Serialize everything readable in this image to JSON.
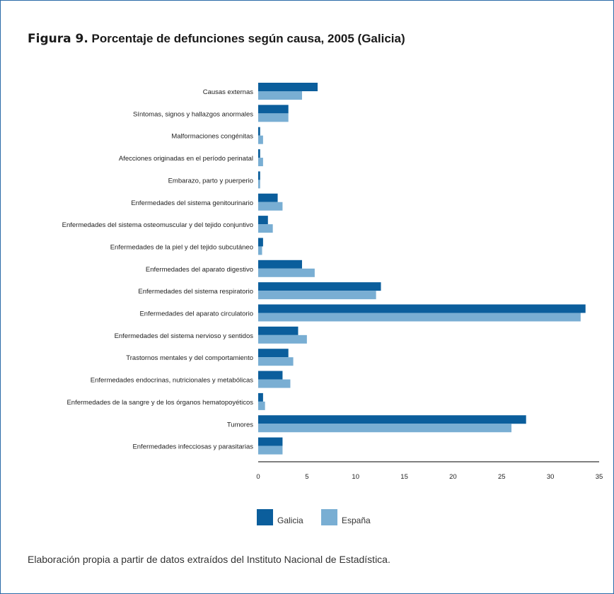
{
  "figure": {
    "label": "Figura 9.",
    "title": "Porcentaje de defunciones según causa, 2005 (Galicia)",
    "source": "Elaboración propia a partir de datos extraídos del Instituto Nacional de Estadística."
  },
  "colors": {
    "galicia": "#0b5e9c",
    "espana": "#79aed3",
    "border": "#2a6aa8",
    "axis": "#000000",
    "text": "#333333"
  },
  "chart_data": {
    "type": "bar",
    "orientation": "horizontal",
    "title": "Porcentaje de defunciones según causa, 2005 (Galicia)",
    "xlim": [
      0,
      35
    ],
    "xticks": [
      0,
      5,
      10,
      15,
      20,
      25,
      30,
      35
    ],
    "grid": false,
    "legend_position": "bottom-left",
    "categories": [
      "Causas externas",
      "Síntomas, signos y hallazgos anormales",
      "Malformaciones congénitas",
      "Afecciones originadas en el período perinatal",
      "Embarazo, parto y puerperio",
      "Enfermedades del sistema genitourinario",
      "Enfermedades del sistema osteomuscular y del tejido conjuntivo",
      "Enfermedades de la piel y del tejido subcutáneo",
      "Enfermedades del aparato digestivo",
      "Enfermedades del sistema respiratorio",
      "Enfermedades del aparato circulatorio",
      "Enfermedades del sistema nervioso y sentidos",
      "Trastornos mentales y del comportamiento",
      "Enfermedades endocrinas, nutricionales y metabólicas",
      "Enfermedades de la sangre y de los órganos hematopoyéticos",
      "Tumores",
      "Enfermedades infecciosas y parasitarias"
    ],
    "series": [
      {
        "name": "Galicia",
        "values": [
          6.1,
          3.1,
          0.2,
          0.2,
          0.2,
          2.0,
          1.0,
          0.5,
          4.5,
          12.6,
          33.6,
          4.1,
          3.1,
          2.5,
          0.5,
          27.5,
          2.5
        ]
      },
      {
        "name": "España",
        "values": [
          4.5,
          3.1,
          0.5,
          0.5,
          0.2,
          2.5,
          1.5,
          0.4,
          5.8,
          12.1,
          33.1,
          5.0,
          3.6,
          3.3,
          0.7,
          26.0,
          2.5
        ]
      }
    ]
  }
}
